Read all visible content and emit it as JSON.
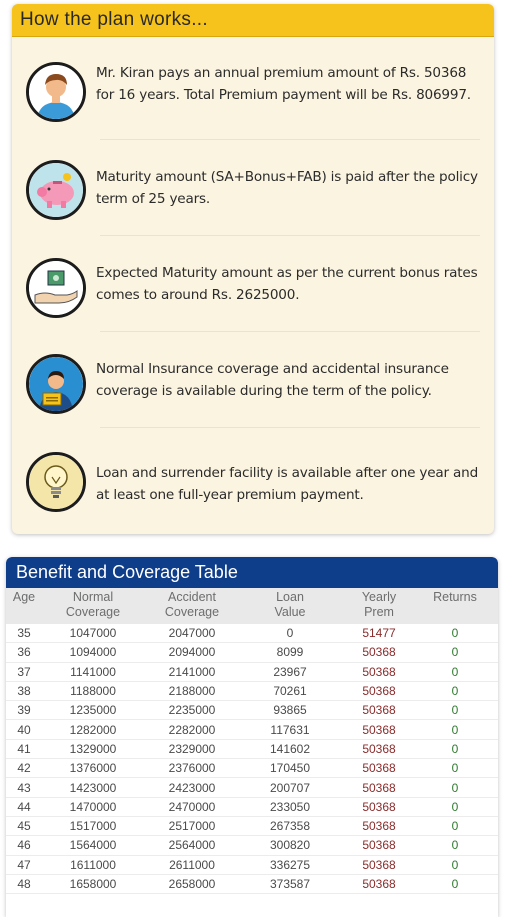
{
  "plan": {
    "title": "How the plan works...",
    "items": [
      {
        "icon": "person-icon",
        "text": "Mr. Kiran pays an annual premium amount of Rs. 50368 for 16 years. Total Premium payment will be Rs. 806997."
      },
      {
        "icon": "piggy-bank-icon",
        "text": "Maturity amount (SA+Bonus+FAB) is paid after the policy term of 25 years."
      },
      {
        "icon": "money-hand-icon",
        "text": "Expected Maturity amount as per the current bonus rates comes to around Rs. 2625000."
      },
      {
        "icon": "insurance-person-icon",
        "text": "Normal Insurance coverage and accidental insurance coverage is available during the term of the policy."
      },
      {
        "icon": "lightbulb-icon",
        "text": "Loan and surrender facility is available after one year and at least one full-year premium payment."
      }
    ]
  },
  "table": {
    "title": "Benefit and Coverage Table",
    "headers": [
      {
        "line1": "Age",
        "line2": ""
      },
      {
        "line1": "Normal",
        "line2": "Coverage"
      },
      {
        "line1": "Accident",
        "line2": "Coverage"
      },
      {
        "line1": "Loan",
        "line2": "Value"
      },
      {
        "line1": "Yearly",
        "line2": "Prem"
      },
      {
        "line1": "Returns",
        "line2": ""
      }
    ],
    "rows": [
      [
        "35",
        "1047000",
        "2047000",
        "0",
        "51477",
        "0"
      ],
      [
        "36",
        "1094000",
        "2094000",
        "8099",
        "50368",
        "0"
      ],
      [
        "37",
        "1141000",
        "2141000",
        "23967",
        "50368",
        "0"
      ],
      [
        "38",
        "1188000",
        "2188000",
        "70261",
        "50368",
        "0"
      ],
      [
        "39",
        "1235000",
        "2235000",
        "93865",
        "50368",
        "0"
      ],
      [
        "40",
        "1282000",
        "2282000",
        "117631",
        "50368",
        "0"
      ],
      [
        "41",
        "1329000",
        "2329000",
        "141602",
        "50368",
        "0"
      ],
      [
        "42",
        "1376000",
        "2376000",
        "170450",
        "50368",
        "0"
      ],
      [
        "43",
        "1423000",
        "2423000",
        "200707",
        "50368",
        "0"
      ],
      [
        "44",
        "1470000",
        "2470000",
        "233050",
        "50368",
        "0"
      ],
      [
        "45",
        "1517000",
        "2517000",
        "267358",
        "50368",
        "0"
      ],
      [
        "46",
        "1564000",
        "2564000",
        "300820",
        "50368",
        "0"
      ],
      [
        "47",
        "1611000",
        "2611000",
        "336275",
        "50368",
        "0"
      ],
      [
        "48",
        "1658000",
        "2658000",
        "373587",
        "50368",
        "0"
      ]
    ]
  },
  "colors": {
    "header_yellow": "#f6c21c",
    "card_cream": "#fbf4e0",
    "table_title_blue": "#0e3d8a",
    "premium_red": "#8a2b2b",
    "returns_green": "#2f7a2f"
  }
}
